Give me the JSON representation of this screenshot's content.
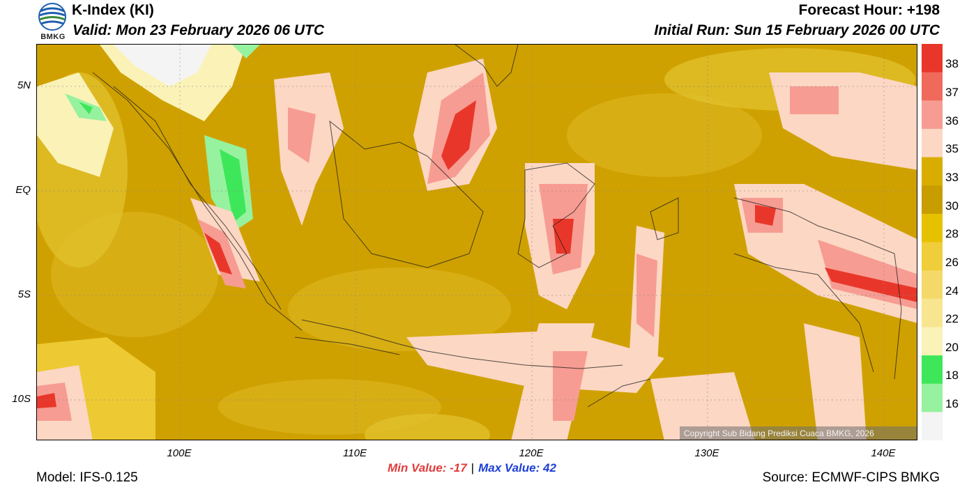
{
  "header": {
    "title": "K-Index (KI)",
    "valid": "Valid: Mon 23 February 2026 06 UTC",
    "forecast_hour": "Forecast Hour: +198",
    "initial_run": "Initial Run: Sun 15 February 2026 00 UTC"
  },
  "logo": {
    "text": "BMKG",
    "icon": "bmkg-logo-icon"
  },
  "map": {
    "lat_labels": [
      "5N",
      "EQ",
      "5S",
      "10S"
    ],
    "lon_labels": [
      "100E",
      "110E",
      "120E",
      "130E",
      "140E"
    ],
    "lon_range": [
      92,
      142
    ],
    "lat_range": [
      -12,
      7
    ]
  },
  "colorbar": {
    "labels": [
      "38",
      "37",
      "36",
      "35",
      "33",
      "30",
      "28",
      "26",
      "24",
      "22",
      "20",
      "18",
      "16"
    ],
    "colors": [
      "#e8372a",
      "#f06a5c",
      "#f79c92",
      "#fcd7c4",
      "#d9ad00",
      "#c79d00",
      "#e6c100",
      "#f0cd3a",
      "#f4d96a",
      "#f7e590",
      "#fbf2b8",
      "#3ee65a",
      "#96f29e",
      "#f4f4f4"
    ]
  },
  "stats": {
    "min_label": "Min Value: -17",
    "separator": "|",
    "max_label": "Max Value:  42"
  },
  "footer": {
    "model": "Model: IFS-0.125",
    "source": "Source: ECMWF-CIPS BMKG",
    "copyright": "Copyright Sub Bidang Prediksi Cuaca BMKG, 2026"
  }
}
